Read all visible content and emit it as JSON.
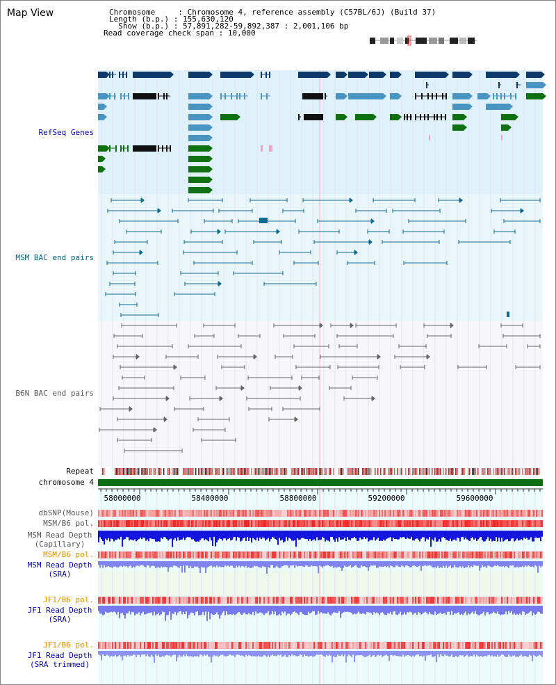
{
  "map_title": "Map View",
  "header": {
    "chromosome_label": "Chromosome",
    "chromosome_value": "Chromosome 4, reference assembly (C57BL/6J) (Build 37)",
    "length_label": "Length (b.p.)",
    "length_value": "155,630,120",
    "show_label": "Show (b.p.)",
    "show_value": "57,891,282-59,892,387 : 2,001,106 bp",
    "coverage_label": "Read coverage check span",
    "coverage_value": "10,000"
  },
  "tracks": {
    "refseq": "RefSeq Genes",
    "msm_bac": "MSM BAC end pairs",
    "b6n_bac": "B6N BAC end pairs",
    "repeat": "Repeat",
    "chromosome": "chromosome 4",
    "dbsnp": "dbSNP(Mouse)",
    "msm_b6_pol": "MSM/B6 pol.",
    "msm_depth_cap_1": "MSM Read Depth",
    "msm_depth_cap_2": "(Capillary)",
    "msm_b6_pol2": "MSM/B6 pol.",
    "msm_depth_sra_1": "MSM Read Depth",
    "msm_depth_sra_2": "(SRA)",
    "jf1_b6_pol": "JF1/B6 pol.",
    "jf1_depth_sra_1": "JF1 Read Depth",
    "jf1_depth_sra_2": "(SRA)",
    "jf1_b6_pol2": "JF1/B6 pol.",
    "jf1_depth_trim_1": "JF1 Read Depth",
    "jf1_depth_trim_2": "(SRA trimmed)"
  },
  "axis": {
    "ticks": [
      "58000000",
      "58400000",
      "58800000",
      "59200000",
      "59600000"
    ]
  },
  "colors": {
    "refseq_bg": "#dff2fb",
    "msm_bg": "#e9f7fb",
    "b6n_bg": "#f6f6fb",
    "lower_bg": "#ebfcfc",
    "dark_gene": "#0d3a6b",
    "mid_gene": "#4a94c2",
    "green_gene": "#0f7012",
    "msm_pair": "#0f6a92",
    "b6n_pair": "#666666",
    "chrom_bar": "#0d6e12",
    "title_blue": "#0000aa",
    "track_teal": "#006680",
    "track_gray": "#555555",
    "track_orange": "#e89000"
  }
}
